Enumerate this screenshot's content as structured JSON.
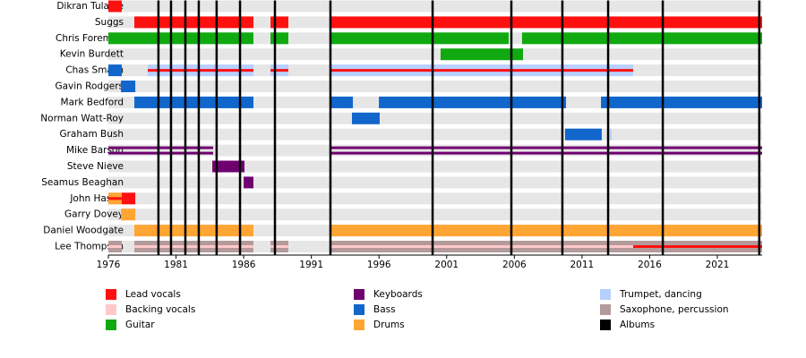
{
  "chart_data": {
    "type": "timeline",
    "xlim": [
      1976,
      2024.31
    ],
    "xticks": [
      1976,
      1981,
      1986,
      1991,
      1996,
      2001,
      2006,
      2011,
      2016,
      2021
    ],
    "roles": [
      {
        "name": "Lead vocals",
        "color": "#ff1010"
      },
      {
        "name": "Backing vocals",
        "color": "#ffc8c8"
      },
      {
        "name": "Guitar",
        "color": "#10aa10"
      },
      {
        "name": "Keyboards",
        "color": "#700070"
      },
      {
        "name": "Bass",
        "color": "#1166cc"
      },
      {
        "name": "Drums",
        "color": "#ffa533"
      },
      {
        "name": "Trumpet, dancing",
        "color": "#b8d0ff"
      },
      {
        "name": "Saxophone, percussion",
        "color": "#b49a9a"
      }
    ],
    "albums": {
      "name": "Albums",
      "color": "#000000",
      "dates": [
        1979.7,
        1980.63,
        1981.69,
        1982.68,
        1984.0,
        1985.73,
        1988.31,
        1992.41,
        1999.96,
        2005.78,
        2009.55,
        2012.93,
        2016.97,
        2024.1
      ]
    },
    "members": [
      {
        "name": "Dikran Tulaine",
        "bars": [
          {
            "role": 0,
            "start": 1976,
            "end": 1976.99
          }
        ]
      },
      {
        "name": "Suggs",
        "bars": [
          {
            "role": 0,
            "start": 1977.92,
            "end": 1986.72
          },
          {
            "role": 0,
            "start": 1987.98,
            "end": 1989.3
          },
          {
            "role": 0,
            "start": 1992.41,
            "end": 2024.31
          }
        ]
      },
      {
        "name": "Chris Foreman",
        "bars": [
          {
            "role": 2,
            "start": 1976,
            "end": 1986.72
          },
          {
            "role": 2,
            "start": 1987.98,
            "end": 1989.3
          },
          {
            "role": 2,
            "start": 1992.41,
            "end": 2005.58
          },
          {
            "role": 2,
            "start": 2006.57,
            "end": 2024.31
          }
        ]
      },
      {
        "name": "Kevin Burdett",
        "bars": [
          {
            "role": 2,
            "start": 2000.55,
            "end": 2006.64
          }
        ]
      },
      {
        "name": "Chas Smash",
        "bars": [
          {
            "role": 4,
            "start": 1976,
            "end": 1976.99
          },
          {
            "role": 6,
            "start": 1978.91,
            "end": 1986.72
          },
          {
            "role": 0,
            "start": 1978.91,
            "end": 1986.72,
            "style": "thin"
          },
          {
            "role": 6,
            "start": 1987.98,
            "end": 1989.3
          },
          {
            "role": 0,
            "start": 1987.98,
            "end": 1989.3,
            "style": "thin"
          },
          {
            "role": 6,
            "start": 1992.41,
            "end": 2014.78
          },
          {
            "role": 0,
            "start": 1992.41,
            "end": 2014.78,
            "style": "thin"
          }
        ]
      },
      {
        "name": "Gavin Rodgers",
        "bars": [
          {
            "role": 4,
            "start": 1976.93,
            "end": 1977.99
          }
        ]
      },
      {
        "name": "Mark Bedford",
        "bars": [
          {
            "role": 4,
            "start": 1977.92,
            "end": 1986.72
          },
          {
            "role": 4,
            "start": 1992.41,
            "end": 1994.07
          },
          {
            "role": 4,
            "start": 1995.99,
            "end": 2009.82
          },
          {
            "role": 4,
            "start": 2012.4,
            "end": 2024.31
          }
        ]
      },
      {
        "name": "Norman Watt-Roy",
        "bars": [
          {
            "role": 4,
            "start": 1994.0,
            "end": 1996.05
          }
        ]
      },
      {
        "name": "Graham Bush",
        "bars": [
          {
            "role": 4,
            "start": 2009.75,
            "end": 2012.46
          },
          {
            "role": 6,
            "start": 2013.06,
            "end": 2013.19
          }
        ]
      },
      {
        "name": "Mike Barson",
        "bars": [
          {
            "role": 3,
            "start": 1976,
            "end": 1983.74,
            "style": "split"
          },
          {
            "role": 3,
            "start": 1992.41,
            "end": 2024.31,
            "style": "split"
          }
        ]
      },
      {
        "name": "Steve Nieve",
        "bars": [
          {
            "role": 3,
            "start": 1983.68,
            "end": 1986.06
          }
        ]
      },
      {
        "name": "Seamus Beaghan",
        "bars": [
          {
            "role": 3,
            "start": 1986.0,
            "end": 1986.72
          }
        ]
      },
      {
        "name": "John Hasler",
        "bars": [
          {
            "role": 5,
            "start": 1976,
            "end": 1976.99
          },
          {
            "role": 0,
            "start": 1976,
            "end": 1976.99,
            "style": "thin"
          },
          {
            "role": 0,
            "start": 1976.99,
            "end": 1977.99
          }
        ]
      },
      {
        "name": "Garry Dovey",
        "bars": [
          {
            "role": 5,
            "start": 1976.93,
            "end": 1977.99
          }
        ]
      },
      {
        "name": "Daniel Woodgate",
        "bars": [
          {
            "role": 5,
            "start": 1977.92,
            "end": 1986.72
          },
          {
            "role": 5,
            "start": 1992.41,
            "end": 2024.31
          }
        ]
      },
      {
        "name": "Lee Thompson",
        "bars": [
          {
            "role": 7,
            "start": 1976,
            "end": 1976.99
          },
          {
            "role": 1,
            "start": 1976,
            "end": 1976.99,
            "style": "thin"
          },
          {
            "role": 7,
            "start": 1977.92,
            "end": 1986.72
          },
          {
            "role": 1,
            "start": 1977.92,
            "end": 1986.72,
            "style": "thin"
          },
          {
            "role": 7,
            "start": 1987.98,
            "end": 1989.3
          },
          {
            "role": 1,
            "start": 1987.98,
            "end": 1989.3,
            "style": "thin"
          },
          {
            "role": 7,
            "start": 1992.41,
            "end": 2024.31
          },
          {
            "role": 1,
            "start": 1992.41,
            "end": 2014.78,
            "style": "thin"
          },
          {
            "role": 0,
            "start": 2014.78,
            "end": 2024.31,
            "style": "thin"
          }
        ]
      }
    ]
  }
}
